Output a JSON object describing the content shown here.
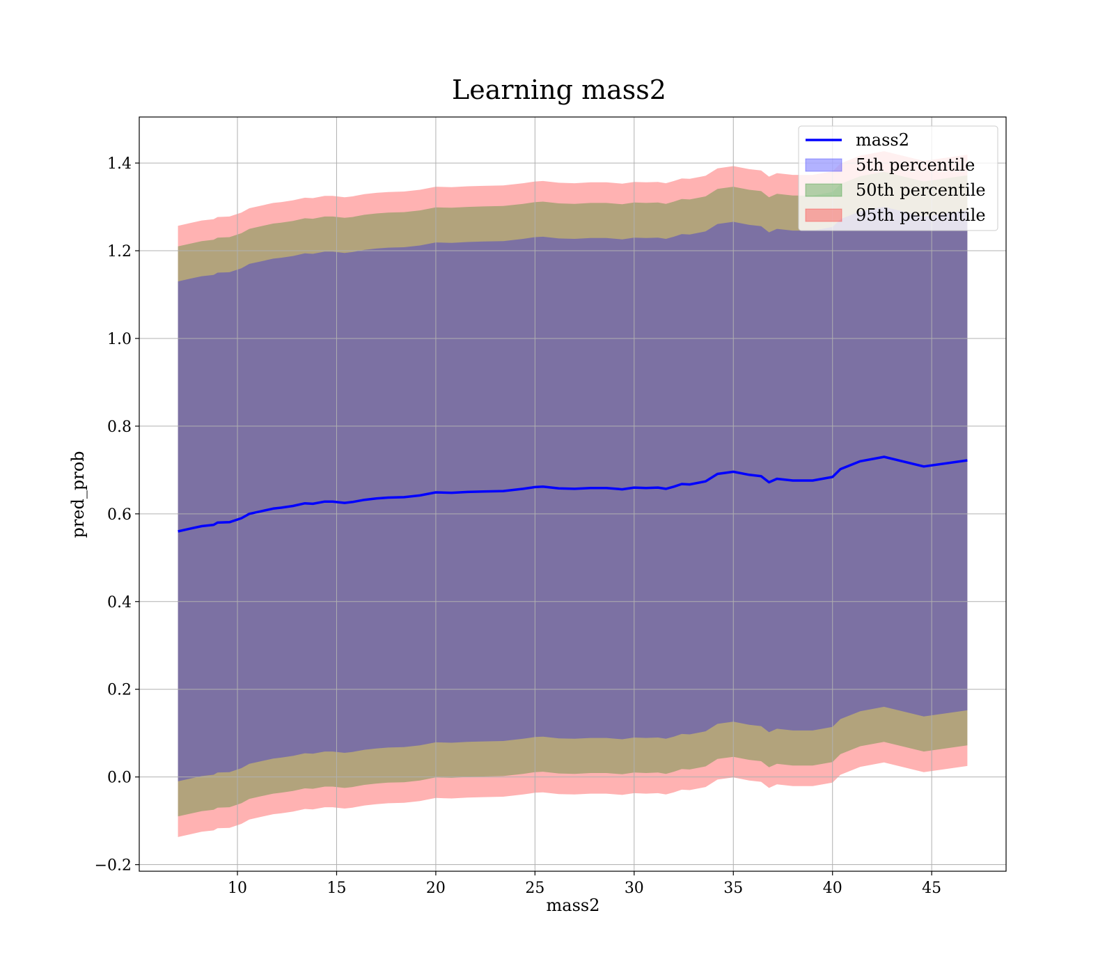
{
  "chart_data": {
    "type": "area",
    "title": "Learning mass2",
    "xlabel": "mass2",
    "ylabel": "pred_prob",
    "xlim": [
      5.05,
      48.75
    ],
    "ylim": [
      -0.215,
      1.505
    ],
    "xticks": [
      10,
      15,
      20,
      25,
      30,
      35,
      40,
      45
    ],
    "xtick_labels": [
      "10",
      "15",
      "20",
      "25",
      "30",
      "35",
      "40",
      "45"
    ],
    "yticks": [
      -0.2,
      0.0,
      0.2,
      0.4,
      0.6,
      0.8,
      1.0,
      1.2,
      1.4
    ],
    "ytick_labels": [
      "−0.2",
      "0.0",
      "0.2",
      "0.4",
      "0.6",
      "0.8",
      "1.0",
      "1.2",
      "1.4"
    ],
    "grid": true,
    "legend_position": "top-right",
    "x": [
      7.0,
      7.6,
      8.2,
      8.8,
      9.0,
      9.6,
      10.2,
      10.6,
      11.2,
      11.8,
      12.2,
      12.8,
      13.4,
      13.8,
      14.4,
      14.8,
      15.4,
      15.8,
      16.4,
      17.0,
      17.6,
      18.4,
      19.2,
      20.0,
      20.8,
      21.6,
      22.4,
      23.4,
      24.4,
      25.0,
      25.4,
      26.2,
      27.0,
      27.8,
      28.6,
      29.4,
      30.0,
      30.6,
      31.2,
      31.6,
      32.0,
      32.4,
      32.8,
      33.6,
      34.2,
      35.0,
      35.8,
      36.4,
      36.8,
      37.2,
      38.0,
      39.0,
      40.0,
      40.4,
      41.4,
      42.6,
      44.6,
      46.8
    ],
    "series": [
      {
        "name": "mass2",
        "color": "#0000ff",
        "values": [
          0.56,
          0.566,
          0.572,
          0.575,
          0.58,
          0.581,
          0.59,
          0.6,
          0.606,
          0.612,
          0.614,
          0.618,
          0.624,
          0.623,
          0.628,
          0.628,
          0.625,
          0.627,
          0.632,
          0.635,
          0.637,
          0.638,
          0.642,
          0.649,
          0.648,
          0.65,
          0.651,
          0.652,
          0.657,
          0.661,
          0.662,
          0.658,
          0.657,
          0.659,
          0.659,
          0.656,
          0.66,
          0.659,
          0.66,
          0.657,
          0.662,
          0.668,
          0.667,
          0.674,
          0.691,
          0.696,
          0.689,
          0.686,
          0.672,
          0.68,
          0.676,
          0.676,
          0.684,
          0.702,
          0.72,
          0.73,
          0.708,
          0.722
        ]
      },
      {
        "name": "5th percentile",
        "color": "#0000ff",
        "offset": 0.57
      },
      {
        "name": "50th percentile",
        "color": "#008000",
        "offset": 0.65
      },
      {
        "name": "95th percentile",
        "color": "#ff0000",
        "offset": 0.697
      }
    ]
  }
}
